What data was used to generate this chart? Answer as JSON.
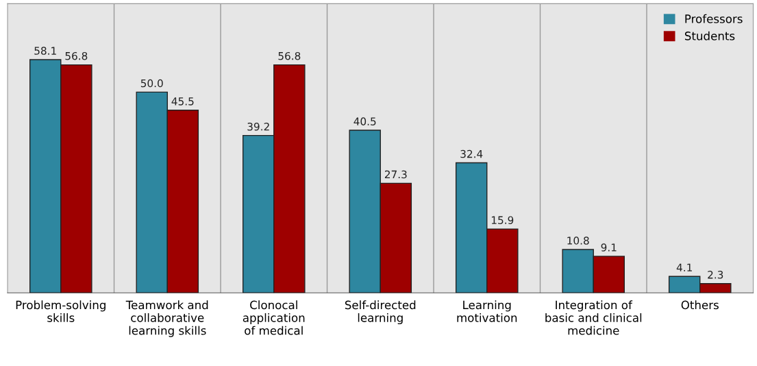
{
  "chart_data": {
    "type": "bar",
    "categories": [
      "Problem-solving\nskills",
      "Teamwork and\ncollaborative\nlearning skills",
      "Clonocal\napplication\nof medical",
      "Self-directed\nlearning",
      "Learning\nmotivation",
      "Integration of\nbasic and clinical\nmedicine",
      "Others"
    ],
    "series": [
      {
        "name": "Professors",
        "color": "#2e87a0",
        "values": [
          58.1,
          50.0,
          39.2,
          40.5,
          32.4,
          10.8,
          4.1
        ],
        "value_labels": [
          "58.1",
          "50.0",
          "39.2",
          "40.5",
          "32.4",
          "10.8",
          "4.1"
        ]
      },
      {
        "name": "Students",
        "color": "#9e0000",
        "values": [
          56.8,
          45.5,
          56.8,
          27.3,
          15.9,
          9.1,
          2.3
        ],
        "value_labels": [
          "56.8",
          "45.5",
          "56.8",
          "27.3",
          "15.9",
          "9.1",
          "2.3"
        ]
      }
    ],
    "grid": "x",
    "legend": "top right"
  }
}
